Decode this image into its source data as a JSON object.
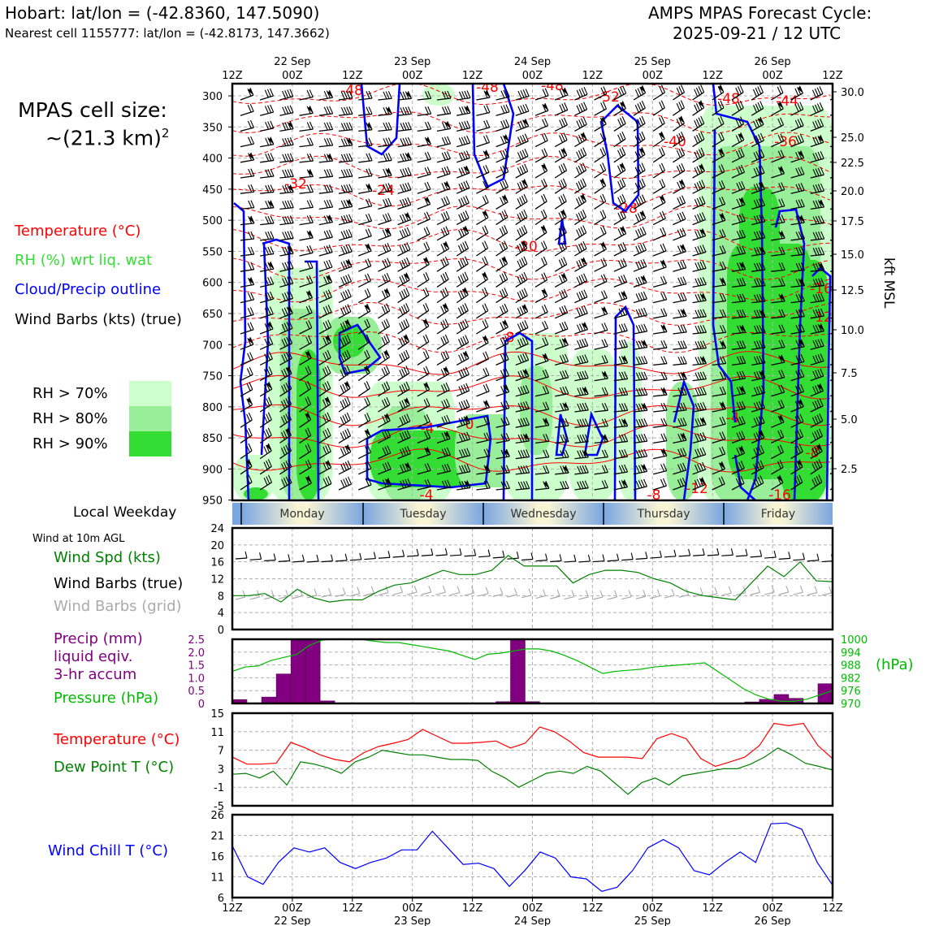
{
  "header": {
    "left_title": "Hobart: lat/lon = (-42.8360, 147.5090)",
    "left_sub": "Nearest cell 1155777: lat/lon = (-42.8173, 147.3662)",
    "right_title1": "AMPS MPAS Forecast Cycle:",
    "right_title2": "2025-09-21 / 12 UTC"
  },
  "legend": {
    "cell_size_1": "MPAS cell size:",
    "cell_size_2": "~(21.3 km)",
    "cell_size_sup": "2",
    "temp": "Temperature (°C)",
    "rh": "RH (%) wrt liq. wat",
    "cloud": "Cloud/Precip outline",
    "wind": "Wind Barbs (kts) (true)",
    "rh70": "RH > 70%",
    "rh80": "RH > 80%",
    "rh90": "RH > 90%",
    "local_weekday": "Local Weekday",
    "wind10m": "Wind at 10m AGL",
    "wind_spd": "Wind Spd (kts)",
    "wind_true": "Wind Barbs (true)",
    "wind_grid": "Wind Barbs (grid)",
    "precip1": "Precip (mm)",
    "precip2": "liquid eqiv.",
    "precip3": "3-hr accum",
    "pressure": "Pressure (hPa)",
    "temperature": "Temperature (°C)",
    "dewpoint": "Dew Point T (°C)",
    "windchill": "Wind Chill T (°C)"
  },
  "colors": {
    "temp": "#ff0000",
    "rh": "#33dd33",
    "rh70": "#ccffcc",
    "rh80": "#99ee99",
    "rh90": "#33dd33",
    "cloud": "#0000ff",
    "precip": "#800080",
    "pressure": "#00bb00",
    "windspd": "#008000",
    "grid_barb": "#aaaaaa",
    "windchill": "#0000ff",
    "dewpoint": "#008000"
  },
  "time_axis": {
    "labels": [
      "12Z",
      "00Z",
      "12Z",
      "00Z",
      "12Z",
      "00Z",
      "12Z",
      "00Z",
      "12Z",
      "00Z",
      "12Z"
    ],
    "dates": [
      "22 Sep",
      "23 Sep",
      "24 Sep",
      "25 Sep",
      "26 Sep"
    ]
  },
  "weekdays": [
    "Monday",
    "Tuesday",
    "Wednesday",
    "Thursday",
    "Friday"
  ],
  "chart_data": [
    {
      "type": "heatmap",
      "name": "time-height cross section",
      "y_left_label": "",
      "y_left_ticks": [
        300,
        350,
        400,
        450,
        500,
        550,
        600,
        650,
        700,
        750,
        800,
        850,
        900,
        950
      ],
      "y_right_label": "kft MSL",
      "y_right_ticks": [
        "30.0",
        "25.0",
        "22.5",
        "20.0",
        "17.5",
        "15.0",
        "12.5",
        "10.0",
        "7.5",
        "5.0",
        "2.5"
      ],
      "temperature_contour_labels": [
        "-48",
        "-48",
        "-48",
        "-52",
        "-48",
        "-44",
        "-40",
        "-36",
        "-32",
        "-24",
        "-28",
        "-20",
        "-16",
        "-12",
        "-8",
        "-4",
        "0",
        "-4",
        "-8",
        "-4",
        "-8",
        "-12",
        "-16"
      ]
    },
    {
      "type": "line",
      "name": "Wind speed 10m",
      "ylim": [
        0,
        24
      ],
      "yticks": [
        "0",
        "4",
        "8",
        "12",
        "16",
        "20",
        "24"
      ],
      "series": [
        {
          "name": "Wind Spd (kts)",
          "values": [
            8,
            8,
            8.5,
            6.5,
            9.5,
            7.5,
            6.5,
            7,
            7,
            9,
            10.5,
            11,
            12.5,
            14,
            13,
            13,
            14,
            17.5,
            15,
            15,
            15,
            11,
            13,
            14,
            14,
            13.5,
            12,
            11,
            9,
            8,
            7.5,
            7,
            11,
            15,
            12.5,
            16,
            11.5,
            11.3
          ]
        }
      ]
    },
    {
      "type": "bar",
      "name": "Precip and pressure",
      "ylim": [
        0,
        2.5
      ],
      "yticks": [
        "0",
        "0.5",
        "1.0",
        "1.5",
        "2.0",
        "2.5"
      ],
      "y2ticks": [
        "970",
        "976",
        "982",
        "988",
        "994",
        "1000"
      ],
      "y2label": "(hPa)",
      "precip": [
        0.15,
        0,
        0.25,
        1.15,
        2.5,
        2.5,
        0.1,
        0,
        0,
        0,
        0,
        0,
        0,
        0,
        0,
        0,
        0,
        0,
        0.07,
        2.5,
        0.07,
        0,
        0,
        0,
        0,
        0,
        0,
        0,
        0,
        0,
        0,
        0,
        0,
        0,
        0,
        0.06,
        0.16,
        0.35,
        0.2,
        0,
        0.77
      ],
      "pressure": [
        985,
        987,
        987.5,
        990,
        991.5,
        992.8,
        997,
        999.5,
        1000.2,
        1000.2,
        1000,
        999.2,
        998.5,
        998.5,
        997.5,
        996.5,
        995.5,
        994.5,
        992.5,
        990.5,
        993,
        993.5,
        994.5,
        995.5,
        995.5,
        994.5,
        992.5,
        990,
        987,
        984,
        985,
        985.5,
        986,
        987,
        987.5,
        988,
        988.5,
        989,
        985,
        981,
        977,
        974,
        972,
        971,
        971,
        972,
        974,
        976
      ]
    },
    {
      "type": "line",
      "name": "Temperature and dew point",
      "ylim": [
        -5,
        15
      ],
      "yticks": [
        "-5",
        "-1",
        "3",
        "7",
        "11",
        "15"
      ],
      "series": [
        {
          "name": "Temperature (°C)",
          "values": [
            5.5,
            4,
            4,
            4.2,
            8.7,
            7.5,
            6,
            5,
            4.5,
            6.5,
            7.8,
            8.5,
            9.3,
            11.5,
            10,
            8.5,
            8.5,
            8.7,
            9,
            7.5,
            8.5,
            12,
            11,
            9,
            6.5,
            5.5,
            5.5,
            5.5,
            5.2,
            9.5,
            10.6,
            9.5,
            5.2,
            3.5,
            4.5,
            5.5,
            8,
            12.8,
            12.3,
            12.8,
            8,
            5.2
          ]
        },
        {
          "name": "Dew Point T (°C)",
          "values": [
            1.8,
            2,
            1,
            2.5,
            -0.5,
            4.5,
            4,
            3.2,
            2,
            4.5,
            5.5,
            7,
            6.5,
            6,
            6,
            5.5,
            5,
            5,
            4.8,
            2.5,
            1,
            -1,
            0.5,
            2,
            2.5,
            2,
            3.5,
            2.5,
            0,
            -2.5,
            0,
            1,
            -0.5,
            1.5,
            2,
            2.5,
            3,
            3,
            4,
            5.5,
            7.5,
            6,
            4.2,
            3.5,
            2.7
          ]
        }
      ]
    },
    {
      "type": "line",
      "name": "Wind chill",
      "ylim": [
        6,
        26
      ],
      "yticks": [
        "6",
        "11",
        "16",
        "21",
        "26"
      ],
      "series": [
        {
          "name": "Wind Chill T (°C)",
          "values": [
            18.5,
            11,
            9.2,
            14.5,
            18,
            17,
            18,
            14.5,
            13,
            14.5,
            15.5,
            17.5,
            17.5,
            22,
            18,
            14,
            14.3,
            13,
            8.7,
            12.5,
            17,
            15.5,
            11,
            10.5,
            7.5,
            8.5,
            12.5,
            18,
            20,
            18,
            12.5,
            11.5,
            14.5,
            17,
            14.5,
            23.8,
            24,
            22.5,
            14.5,
            9
          ]
        }
      ]
    }
  ]
}
